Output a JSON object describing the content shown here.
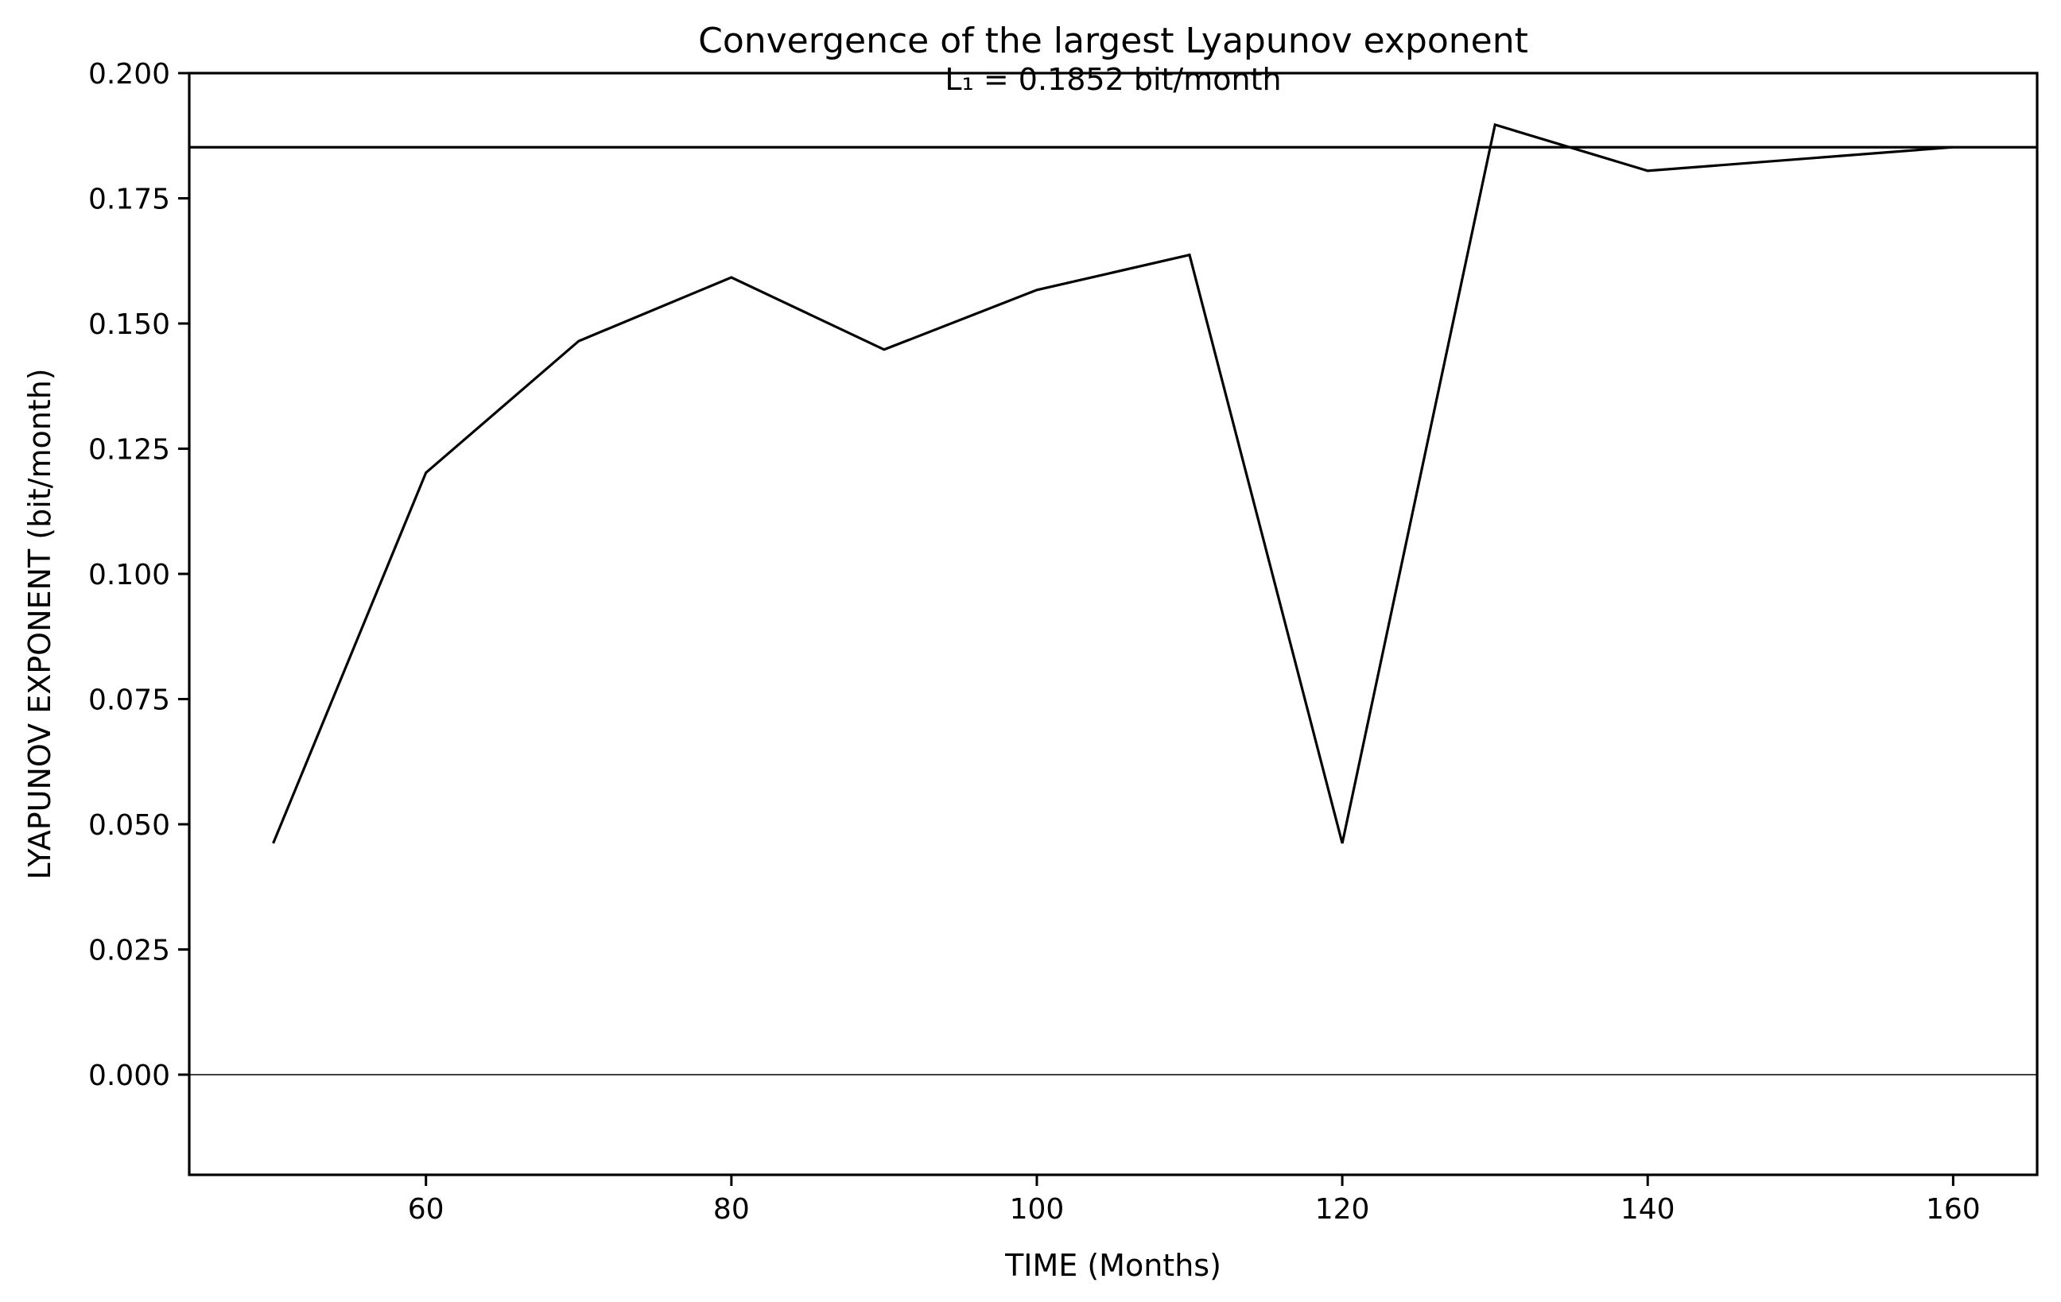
{
  "chart_data": {
    "type": "line",
    "title": "Convergence of the largest Lyapunov exponent",
    "annotation": "L₁ = 0.1852 bit/month",
    "xlabel": "TIME (Months)",
    "ylabel": "LYAPUNOV EXPONENT (bit/month)",
    "xlim": [
      44.5,
      165.5
    ],
    "ylim": [
      -0.02,
      0.2
    ],
    "xticks": [
      60,
      80,
      100,
      120,
      140,
      160
    ],
    "yticks": [
      0.0,
      0.025,
      0.05,
      0.075,
      0.1,
      0.125,
      0.15,
      0.175,
      0.2
    ],
    "ytick_labels": [
      "0.000",
      "0.025",
      "0.050",
      "0.075",
      "0.100",
      "0.125",
      "0.150",
      "0.175",
      "0.200"
    ],
    "grid": false,
    "line_color": "#000000",
    "series": [
      {
        "x": [
          50,
          60,
          70,
          80,
          90,
          100,
          110,
          120,
          130,
          140,
          160
        ],
        "values": [
          0.0462,
          0.1202,
          0.1465,
          0.1592,
          0.1448,
          0.1567,
          0.1637,
          0.0462,
          0.1897,
          0.1805,
          0.1852
        ]
      }
    ],
    "hlines": [
      {
        "y": 0.1852,
        "color": "#000000",
        "role": "reference"
      },
      {
        "y": 0.0,
        "color": "#000000",
        "role": "zero"
      }
    ]
  }
}
